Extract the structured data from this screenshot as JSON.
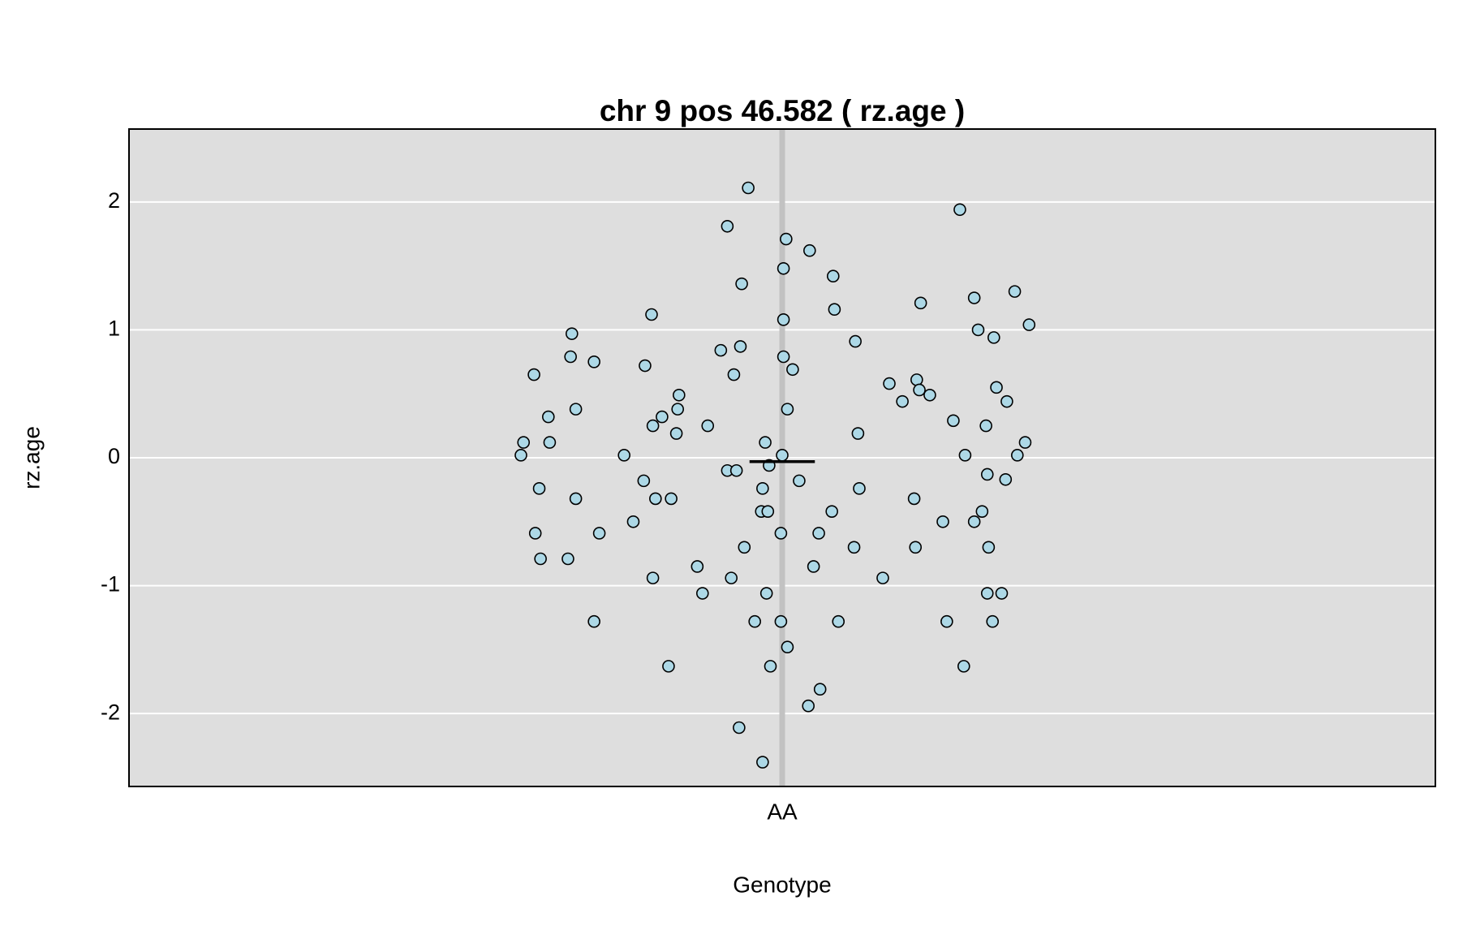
{
  "chart_data": {
    "type": "scatter",
    "title": "chr 9 pos 46.582 ( rz.age )",
    "x_label": "Genotype",
    "y_label": "rz.age",
    "xlim": [
      0.5,
      1.5
    ],
    "xticks": [
      {
        "value": 1,
        "label": "AA"
      }
    ],
    "ylim": [
      -2.57,
      2.57
    ],
    "yticks": [
      -2,
      -1,
      0,
      1,
      2
    ],
    "grid": true,
    "mean": -0.03,
    "series": [
      {
        "color": "#add8e6",
        "x": [
          0.974,
          0.958,
          1.003,
          1.021,
          1.136,
          1.001,
          1.039,
          0.969,
          1.178,
          1.147,
          1.106,
          1.04,
          0.9,
          1.001,
          1.189,
          1.15,
          0.839,
          1.162,
          1.056,
          0.968,
          0.953,
          0.838,
          1.001,
          0.856,
          0.895,
          1.008,
          0.81,
          0.963,
          1.103,
          1.082,
          1.164,
          1.105,
          1.113,
          0.921,
          1.172,
          1.092,
          0.842,
          0.92,
          1.004,
          0.908,
          0.821,
          1.131,
          1.156,
          0.901,
          0.943,
          0.919,
          1.058,
          0.802,
          0.822,
          0.987,
          1.186,
          0.8,
          0.879,
          1.0,
          1.14,
          1.18,
          0.99,
          0.958,
          0.965,
          1.157,
          0.894,
          1.013,
          1.171,
          0.814,
          0.985,
          1.059,
          0.842,
          0.903,
          0.915,
          1.101,
          0.984,
          0.989,
          1.038,
          1.153,
          0.886,
          1.123,
          1.147,
          0.811,
          0.86,
          0.999,
          1.028,
          0.971,
          1.055,
          1.102,
          1.158,
          0.815,
          0.836,
          0.935,
          1.024,
          0.901,
          0.961,
          1.077,
          0.939,
          0.988,
          1.157,
          1.168,
          0.856,
          0.979,
          0.999,
          1.043,
          1.126,
          1.161,
          1.004,
          0.913,
          0.991,
          1.139,
          1.029,
          1.02,
          0.967,
          0.985
        ],
        "values": [
          2.11,
          1.81,
          1.71,
          1.62,
          1.94,
          1.48,
          1.42,
          1.36,
          1.3,
          1.25,
          1.21,
          1.16,
          1.12,
          1.08,
          1.04,
          1.0,
          0.97,
          0.94,
          0.91,
          0.87,
          0.84,
          0.79,
          0.79,
          0.75,
          0.72,
          0.69,
          0.65,
          0.65,
          0.61,
          0.58,
          0.55,
          0.53,
          0.49,
          0.49,
          0.44,
          0.44,
          0.38,
          0.38,
          0.38,
          0.32,
          0.32,
          0.29,
          0.25,
          0.25,
          0.25,
          0.19,
          0.19,
          0.12,
          0.12,
          0.12,
          0.12,
          0.02,
          0.02,
          0.02,
          0.02,
          0.02,
          -0.06,
          -0.1,
          -0.1,
          -0.13,
          -0.18,
          -0.18,
          -0.17,
          -0.24,
          -0.24,
          -0.24,
          -0.32,
          -0.32,
          -0.32,
          -0.32,
          -0.42,
          -0.42,
          -0.42,
          -0.42,
          -0.5,
          -0.5,
          -0.5,
          -0.59,
          -0.59,
          -0.59,
          -0.59,
          -0.7,
          -0.7,
          -0.7,
          -0.7,
          -0.79,
          -0.79,
          -0.85,
          -0.85,
          -0.94,
          -0.94,
          -0.94,
          -1.06,
          -1.06,
          -1.06,
          -1.06,
          -1.28,
          -1.28,
          -1.28,
          -1.28,
          -1.28,
          -1.28,
          -1.48,
          -1.63,
          -1.63,
          -1.63,
          -1.81,
          -1.94,
          -2.11,
          -2.38
        ]
      }
    ]
  }
}
